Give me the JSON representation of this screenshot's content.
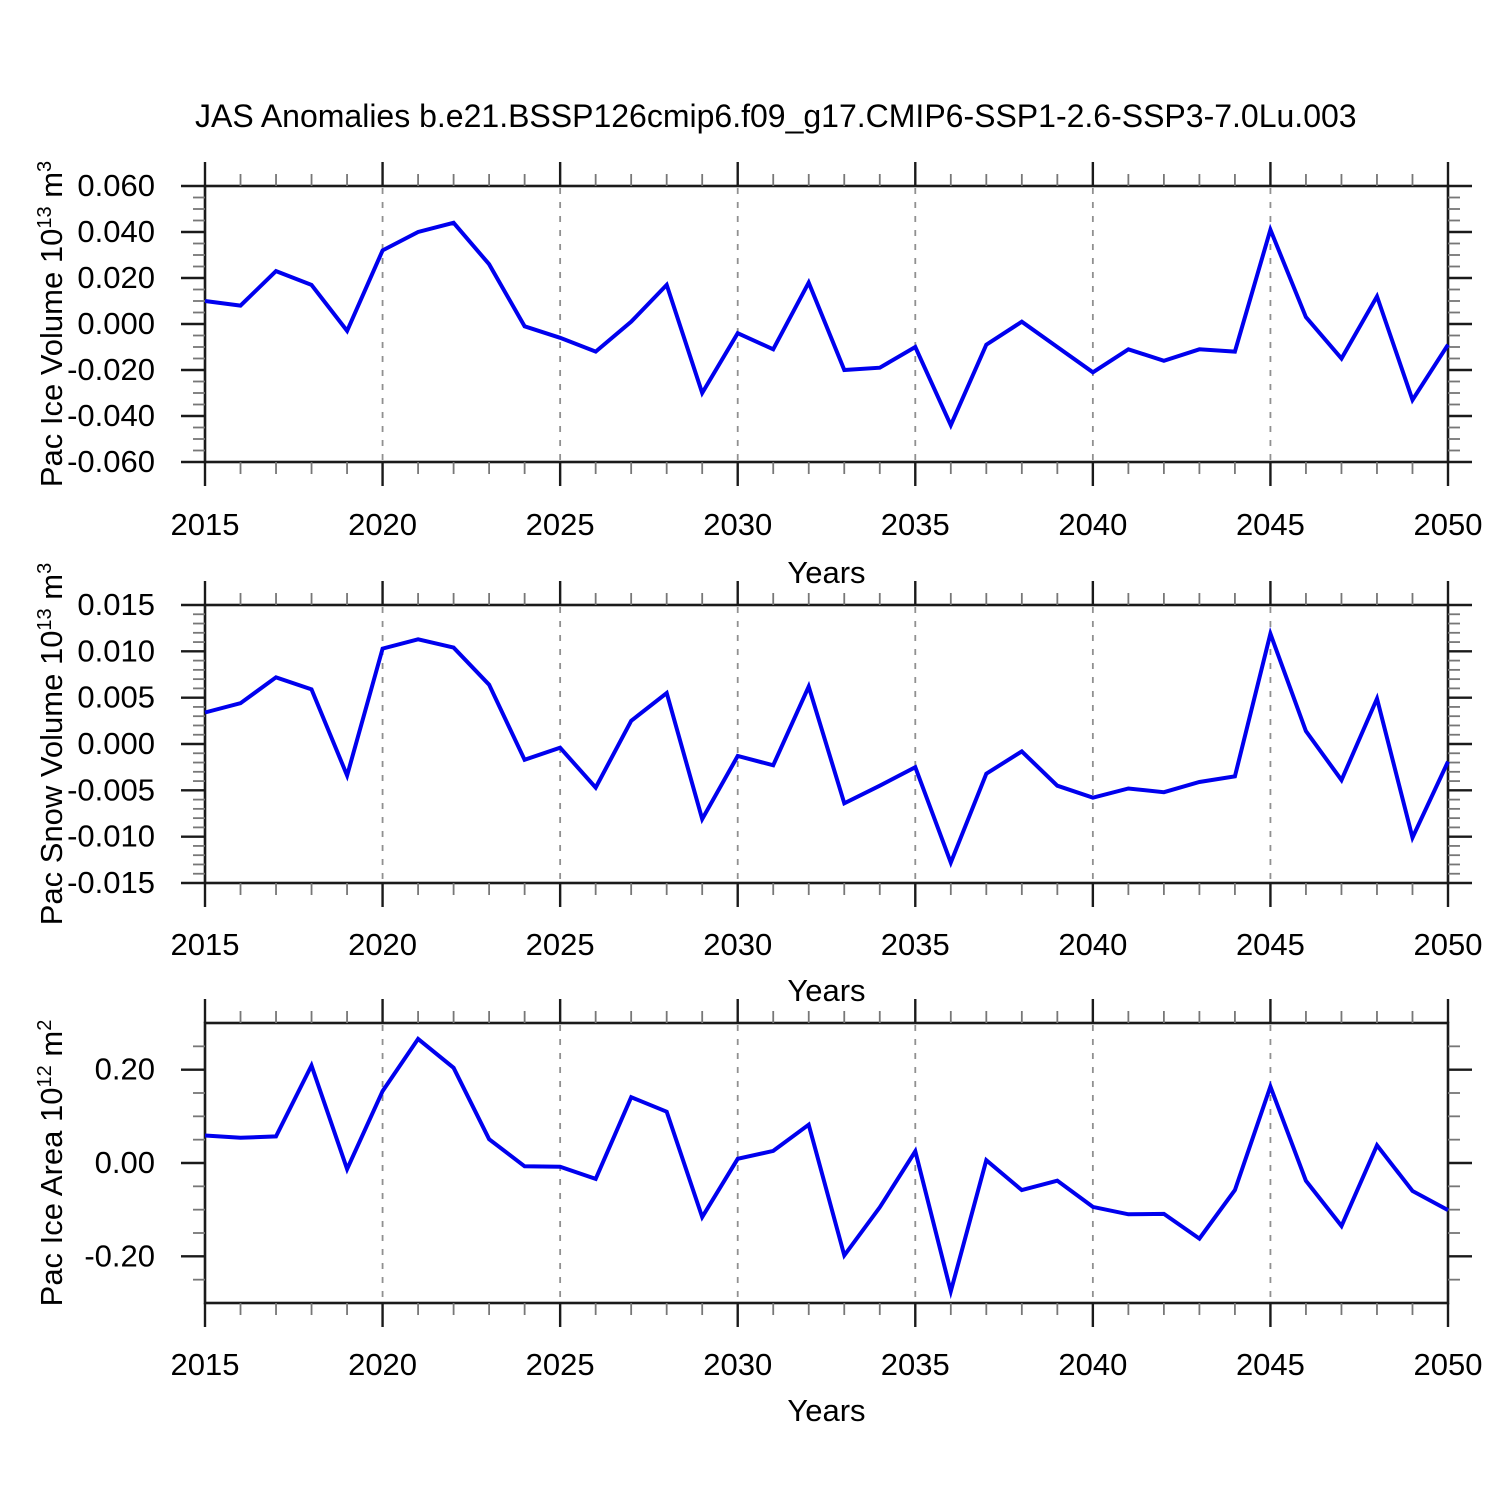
{
  "title": "JAS Anomalies b.e21.BSSP126cmip6.f09_g17.CMIP6-SSP1-2.6-SSP3-7.0Lu.003",
  "xlabel": "Years",
  "chart_data": {
    "type": "line",
    "line_color": "#0000EE",
    "grid_color": "#909090",
    "x_range": [
      2015,
      2050
    ],
    "x_major_ticks": [
      2015,
      2020,
      2025,
      2030,
      2035,
      2040,
      2045,
      2050
    ],
    "grid_years": [
      2020,
      2025,
      2030,
      2035,
      2040,
      2045
    ],
    "x": [
      2015,
      2016,
      2017,
      2018,
      2019,
      2020,
      2021,
      2022,
      2023,
      2024,
      2025,
      2026,
      2027,
      2028,
      2029,
      2030,
      2031,
      2032,
      2033,
      2034,
      2035,
      2036,
      2037,
      2038,
      2039,
      2040,
      2041,
      2042,
      2043,
      2044,
      2045,
      2046,
      2047,
      2048,
      2049,
      2050
    ],
    "panels": [
      {
        "name": "pac_ice_volume",
        "ylabel_text": "Pac Ice Volume",
        "power_base": "10",
        "power_exp": "13",
        "unit": "m",
        "unit_exp": "3",
        "ylim": [
          -0.06,
          0.06
        ],
        "ytick_values": [
          0.06,
          0.04,
          0.02,
          0.0,
          -0.02,
          -0.04,
          -0.06
        ],
        "ytick_labels": [
          "0.060",
          "0.040",
          "0.020",
          "0.000",
          "-0.020",
          "-0.040",
          "-0.060"
        ],
        "y_minor_step": 0.005,
        "values": [
          0.01,
          0.008,
          0.023,
          0.017,
          -0.003,
          0.032,
          0.04,
          0.044,
          0.026,
          -0.001,
          -0.006,
          -0.012,
          0.001,
          0.017,
          -0.03,
          -0.004,
          -0.011,
          0.018,
          -0.02,
          -0.019,
          -0.01,
          -0.044,
          -0.009,
          0.001,
          -0.01,
          -0.021,
          -0.011,
          -0.016,
          -0.011,
          -0.012,
          0.041,
          0.003,
          -0.015,
          0.012,
          -0.033,
          -0.009
        ]
      },
      {
        "name": "pac_snow_volume",
        "ylabel_text": "Pac Snow Volume",
        "power_base": "10",
        "power_exp": "13",
        "unit": "m",
        "unit_exp": "3",
        "ylim": [
          -0.015,
          0.015
        ],
        "ytick_values": [
          0.015,
          0.01,
          0.005,
          0.0,
          -0.005,
          -0.01,
          -0.015
        ],
        "ytick_labels": [
          "0.015",
          "0.010",
          "0.005",
          "0.000",
          "-0.005",
          "-0.010",
          "-0.015"
        ],
        "y_minor_step": 0.001,
        "values": [
          0.0034,
          0.0044,
          0.0072,
          0.0059,
          -0.0034,
          0.0103,
          0.0113,
          0.0104,
          0.0064,
          -0.0017,
          -0.0004,
          -0.0047,
          0.0025,
          0.0055,
          -0.0081,
          -0.0013,
          -0.0023,
          0.0062,
          -0.0064,
          -0.0045,
          -0.0025,
          -0.0128,
          -0.0032,
          -0.0008,
          -0.0045,
          -0.0058,
          -0.0048,
          -0.0052,
          -0.0041,
          -0.0035,
          0.0119,
          0.0014,
          -0.0039,
          0.0049,
          -0.0101,
          -0.0019
        ]
      },
      {
        "name": "pac_ice_area",
        "ylabel_text": "Pac Ice Area",
        "power_base": "10",
        "power_exp": "12",
        "unit": "m",
        "unit_exp": "2",
        "ylim": [
          -0.3,
          0.3
        ],
        "ytick_values": [
          0.2,
          0.0,
          -0.2
        ],
        "ytick_labels": [
          "0.20",
          "0.00",
          "-0.20"
        ],
        "y_minor_step": 0.05,
        "values": [
          0.059,
          0.054,
          0.057,
          0.209,
          -0.013,
          0.154,
          0.266,
          0.204,
          0.051,
          -0.007,
          -0.008,
          -0.034,
          0.141,
          0.11,
          -0.116,
          0.009,
          0.026,
          0.082,
          -0.198,
          -0.095,
          0.025,
          -0.275,
          0.006,
          -0.058,
          -0.038,
          -0.094,
          -0.11,
          -0.109,
          -0.162,
          -0.058,
          0.164,
          -0.038,
          -0.135,
          0.038,
          -0.06,
          -0.101
        ]
      }
    ]
  }
}
